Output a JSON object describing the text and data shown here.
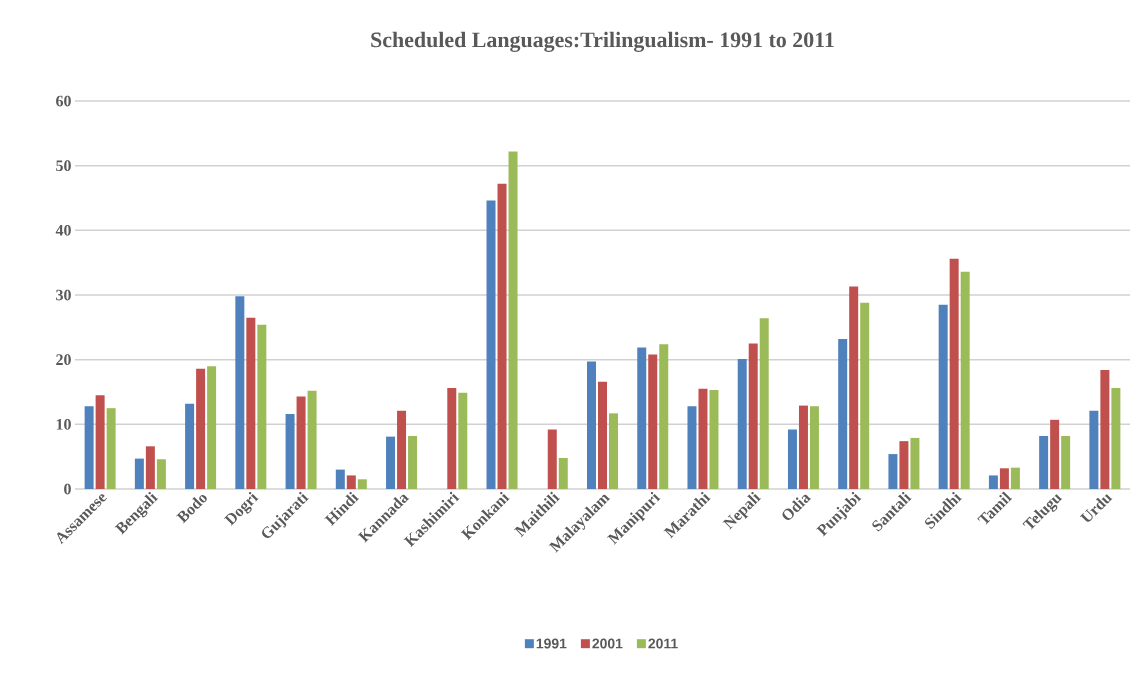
{
  "chart_data": {
    "type": "bar",
    "title": "Scheduled Languages:Trilingualism- 1991 to 2011",
    "categories": [
      "Assamese",
      "Bengali",
      "Bodo",
      "Dogri",
      "Gujarati",
      "Hindi",
      "Kannada",
      "Kashimiri",
      "Konkani",
      "Maithili",
      "Malayalam",
      "Manipuri",
      "Marathi",
      "Nepali",
      "Odia",
      "Punjabi",
      "Santali",
      "Sindhi",
      "Tamil",
      "Telugu",
      "Urdu"
    ],
    "series": [
      {
        "name": "1991",
        "color": "#4f81bd",
        "values": [
          12.8,
          4.7,
          13.2,
          29.8,
          11.6,
          3.0,
          8.1,
          null,
          44.6,
          null,
          19.7,
          21.9,
          12.8,
          20.1,
          9.2,
          23.2,
          5.4,
          28.5,
          2.1,
          8.2,
          12.1
        ]
      },
      {
        "name": "2001",
        "color": "#c0504d",
        "values": [
          14.5,
          6.6,
          18.6,
          26.5,
          14.3,
          2.1,
          12.1,
          15.6,
          47.2,
          9.2,
          16.6,
          20.8,
          15.5,
          22.5,
          12.9,
          31.3,
          7.4,
          35.6,
          3.2,
          10.7,
          18.4
        ]
      },
      {
        "name": "2011",
        "color": "#9bbb59",
        "values": [
          12.5,
          4.6,
          19.0,
          25.4,
          15.2,
          1.5,
          8.2,
          14.9,
          52.2,
          4.8,
          11.7,
          22.4,
          15.3,
          26.4,
          12.8,
          28.8,
          7.9,
          33.6,
          3.3,
          8.2,
          15.6
        ]
      }
    ],
    "ylim": [
      0,
      60
    ],
    "yticks": [
      0,
      10,
      20,
      30,
      40,
      50,
      60
    ],
    "grid": "y",
    "legend": "bottom"
  }
}
